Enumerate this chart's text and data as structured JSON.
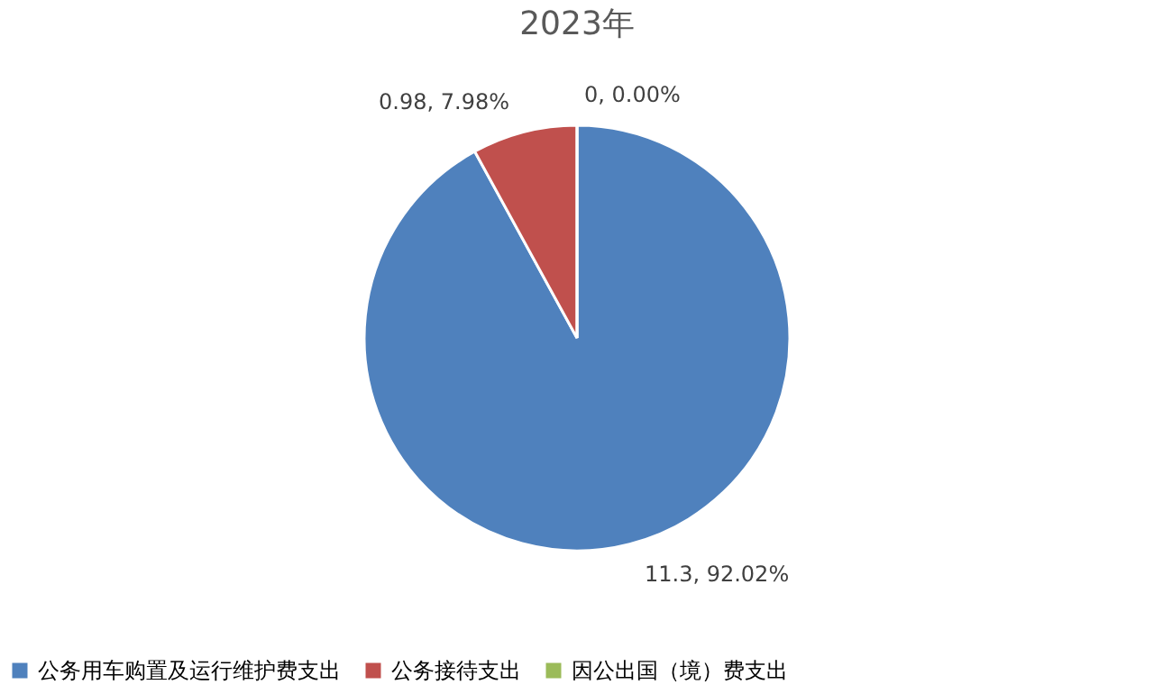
{
  "chart_data": {
    "type": "pie",
    "title": "2023年",
    "categories": [
      "公务用车购置及运行维护费支出",
      "公务接待支出",
      "因公出国（境）费支出"
    ],
    "values": [
      11.3,
      0.98,
      0
    ],
    "colors": [
      "#4f81bd",
      "#c0504d",
      "#9bbb59"
    ],
    "value_labels": [
      "11.3, 92.02%",
      "0.98, 7.98%",
      "0, 0.00%"
    ],
    "legend": "bottom"
  }
}
